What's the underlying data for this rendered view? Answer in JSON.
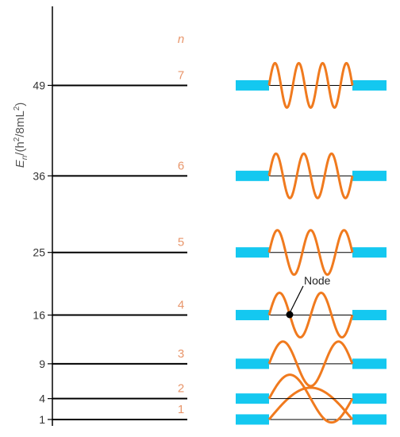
{
  "axis": {
    "label_main": "E",
    "label_sub": "n",
    "label_rest": "/(h",
    "label_sup1": "2",
    "label_mid": "/8mL",
    "label_sup2": "2",
    "label_end": ")"
  },
  "n_header": "n",
  "node_label": "Node",
  "colors": {
    "wave": "#f07a1e",
    "barrier": "#14c8f0",
    "level_line": "#000000",
    "n_label": "#e8956a"
  },
  "levels": [
    {
      "n": "1",
      "energy": 1,
      "tick": "1"
    },
    {
      "n": "2",
      "energy": 4,
      "tick": "4"
    },
    {
      "n": "3",
      "energy": 9,
      "tick": "9"
    },
    {
      "n": "4",
      "energy": 16,
      "tick": "16"
    },
    {
      "n": "5",
      "energy": 25,
      "tick": "25"
    },
    {
      "n": "6",
      "energy": 36,
      "tick": "36"
    },
    {
      "n": "7",
      "energy": 49,
      "tick": "49"
    }
  ]
}
